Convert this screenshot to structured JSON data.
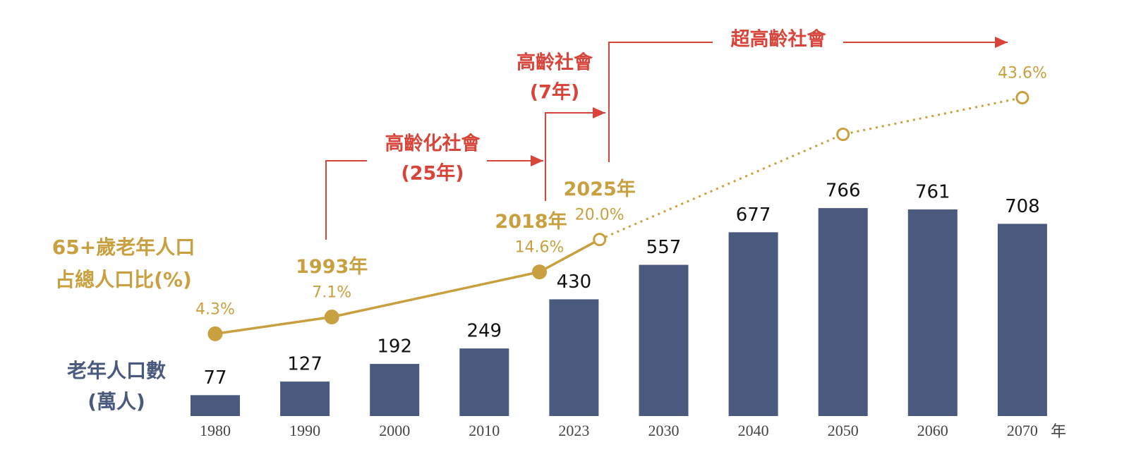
{
  "chart_data": {
    "type": "bar-line",
    "x_unit": "年",
    "categories": [
      "1980",
      "1990",
      "2000",
      "2010",
      "2023",
      "2030",
      "2040",
      "2050",
      "2060",
      "2070"
    ],
    "series": [
      {
        "name": [
          "老年人口數",
          "(萬人)"
        ],
        "type": "bar",
        "color": "#4a5a7e",
        "values": [
          77,
          127,
          192,
          249,
          430,
          557,
          677,
          766,
          761,
          708
        ]
      },
      {
        "name": [
          "65+歲老年人口",
          "占總人口比(%)"
        ],
        "type": "line",
        "color": "#c9a03f",
        "x": [
          1980,
          1993,
          2018,
          2025,
          2050,
          2070
        ],
        "x_labels": [
          null,
          "1993年",
          "2018年",
          "2025年",
          null,
          null
        ],
        "values": [
          4.3,
          7.1,
          14.6,
          20.0,
          37.5,
          43.6
        ],
        "value_labels": [
          "4.3%",
          "7.1%",
          "14.6%",
          "20.0%",
          null,
          "43.6%"
        ],
        "projected_from_index": 3
      }
    ],
    "annotations": [
      [
        "高齡化社會",
        "(25年)"
      ],
      [
        "高齡社會",
        "(7年)"
      ],
      [
        "超高齡社會"
      ]
    ],
    "annotation_color": "#d9443a"
  }
}
